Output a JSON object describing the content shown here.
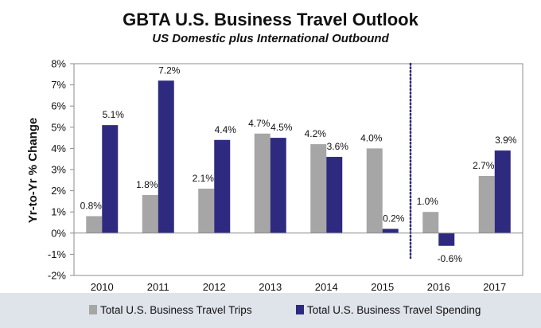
{
  "chart_data": {
    "type": "bar",
    "title": "GBTA U.S. Business Travel Outlook",
    "subtitle": "US Domestic plus International Outbound",
    "xlabel": "",
    "ylabel": "Yr-to-Yr % Change",
    "ylim": [
      -2,
      8
    ],
    "yticks": [
      -2,
      -1,
      0,
      1,
      2,
      3,
      4,
      5,
      6,
      7,
      8
    ],
    "ytick_suffix": "%",
    "categories": [
      "2010",
      "2011",
      "2012",
      "2013",
      "2014",
      "2015",
      "2016",
      "2017"
    ],
    "series": [
      {
        "name": "Total U.S. Business Travel Trips",
        "color": "#a6a6a6",
        "values": [
          0.8,
          1.8,
          2.1,
          4.7,
          4.2,
          4.0,
          1.0,
          2.7
        ],
        "labels": [
          "0.8%",
          "1.8%",
          "2.1%",
          "4.7%",
          "4.2%",
          "4.0%",
          "1.0%",
          "2.7%"
        ]
      },
      {
        "name": "Total U.S. Business Travel Spending",
        "color": "#2e2a7f",
        "values": [
          5.1,
          7.2,
          4.4,
          4.5,
          3.6,
          0.2,
          -0.6,
          3.9
        ],
        "labels": [
          "5.1%",
          "7.2%",
          "4.4%",
          "4.5%",
          "3.6%",
          "0.2%",
          "-0.6%",
          "3.9%"
        ]
      }
    ],
    "forecast_divider": {
      "between": [
        "2015",
        "2016"
      ],
      "style": "dotted",
      "color": "#2e2a7f"
    },
    "grid": false,
    "legend_position": "bottom",
    "colors": {
      "plot_border": "#8c8c8c",
      "legend_background": "#dfe3ea",
      "text": "#111111"
    }
  }
}
